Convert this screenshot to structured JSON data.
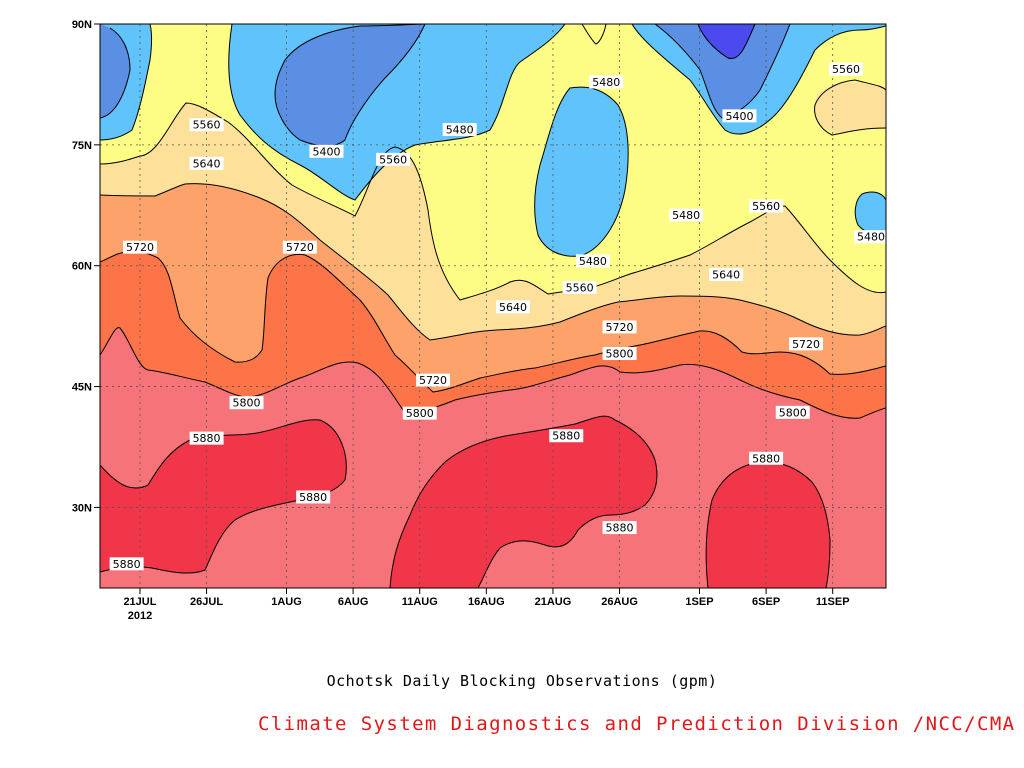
{
  "chart_data": {
    "type": "contour",
    "title": "Ochotsk Daily Blocking Observations (gpm)",
    "credit": "Climate System Diagnostics and Prediction Division /NCC/CMA",
    "xlabel": "",
    "ylabel": "",
    "x_range": [
      "2012-07-18",
      "2012-09-15"
    ],
    "y_range": [
      "20N",
      "90N"
    ],
    "x_ticks": [
      "21JUL",
      "26JUL",
      "1AUG",
      "6AUG",
      "11AUG",
      "16AUG",
      "21AUG",
      "26AUG",
      "1SEP",
      "6SEP",
      "11SEP"
    ],
    "x_year_label": "2012",
    "y_ticks": [
      "30N",
      "45N",
      "60N",
      "75N",
      "90N"
    ],
    "grid": true,
    "contour_levels": [
      5400,
      5480,
      5560,
      5640,
      5720,
      5800,
      5880
    ],
    "colors": {
      "below_5400": "#4a4aef",
      "5400_5480": "#5a8fe4",
      "5480_5560": "#60c3fc",
      "5560_5640": "#fdfc84",
      "5640_5720": "#fde19b",
      "5720_5800": "#fca26a",
      "5800_5880": "#fc7448",
      "5880_5960": "#f7737a",
      "above_5960": "#f2364a"
    },
    "contour_labels": [
      {
        "value": "5560",
        "date": "2012-07-26",
        "lat": 77.5
      },
      {
        "value": "5640",
        "date": "2012-07-26",
        "lat": 72.7
      },
      {
        "value": "5720",
        "date": "2012-07-21",
        "lat": 62.3
      },
      {
        "value": "5720",
        "date": "2012-08-02",
        "lat": 62.3
      },
      {
        "value": "5800",
        "date": "2012-07-29",
        "lat": 43.0
      },
      {
        "value": "5880",
        "date": "2012-07-26",
        "lat": 38.6
      },
      {
        "value": "5880",
        "date": "2012-08-03",
        "lat": 31.3
      },
      {
        "value": "5880",
        "date": "2012-07-20",
        "lat": 23.0
      },
      {
        "value": "5400",
        "date": "2012-08-04",
        "lat": 74.2
      },
      {
        "value": "5560",
        "date": "2012-08-09",
        "lat": 73.2
      },
      {
        "value": "5480",
        "date": "2012-08-14",
        "lat": 76.9
      },
      {
        "value": "5720",
        "date": "2012-08-12",
        "lat": 45.8
      },
      {
        "value": "5800",
        "date": "2012-08-11",
        "lat": 41.7
      },
      {
        "value": "5640",
        "date": "2012-08-18",
        "lat": 54.9
      },
      {
        "value": "5560",
        "date": "2012-08-23",
        "lat": 57.3
      },
      {
        "value": "5480",
        "date": "2012-08-24",
        "lat": 60.6
      },
      {
        "value": "5480",
        "date": "2012-08-25",
        "lat": 82.8
      },
      {
        "value": "5720",
        "date": "2012-08-26",
        "lat": 52.4
      },
      {
        "value": "5800",
        "date": "2012-08-26",
        "lat": 49.1
      },
      {
        "value": "5880",
        "date": "2012-08-22",
        "lat": 38.9
      },
      {
        "value": "5880",
        "date": "2012-08-26",
        "lat": 27.5
      },
      {
        "value": "5480",
        "date": "2012-08-31",
        "lat": 66.3
      },
      {
        "value": "5400",
        "date": "2012-09-04",
        "lat": 78.6
      },
      {
        "value": "5640",
        "date": "2012-09-03",
        "lat": 58.9
      },
      {
        "value": "5560",
        "date": "2012-09-06",
        "lat": 67.4
      },
      {
        "value": "5720",
        "date": "2012-09-09",
        "lat": 50.3
      },
      {
        "value": "5800",
        "date": "2012-09-08",
        "lat": 41.8
      },
      {
        "value": "5880",
        "date": "2012-09-06",
        "lat": 36.1
      },
      {
        "value": "5560",
        "date": "2012-09-12",
        "lat": 84.4
      },
      {
        "value": "5480",
        "date": "2012-09-15",
        "lat": 63.6
      }
    ]
  }
}
